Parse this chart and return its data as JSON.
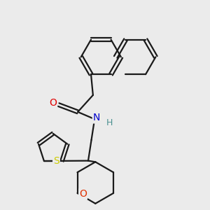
{
  "bg_color": "#ebebeb",
  "bond_color": "#1a1a1a",
  "bond_width": 1.6,
  "atom_colors": {
    "O_amide": "#e00000",
    "O_ring": "#e03000",
    "N": "#0000cc",
    "H": "#4a9090",
    "S": "#cccc00"
  }
}
